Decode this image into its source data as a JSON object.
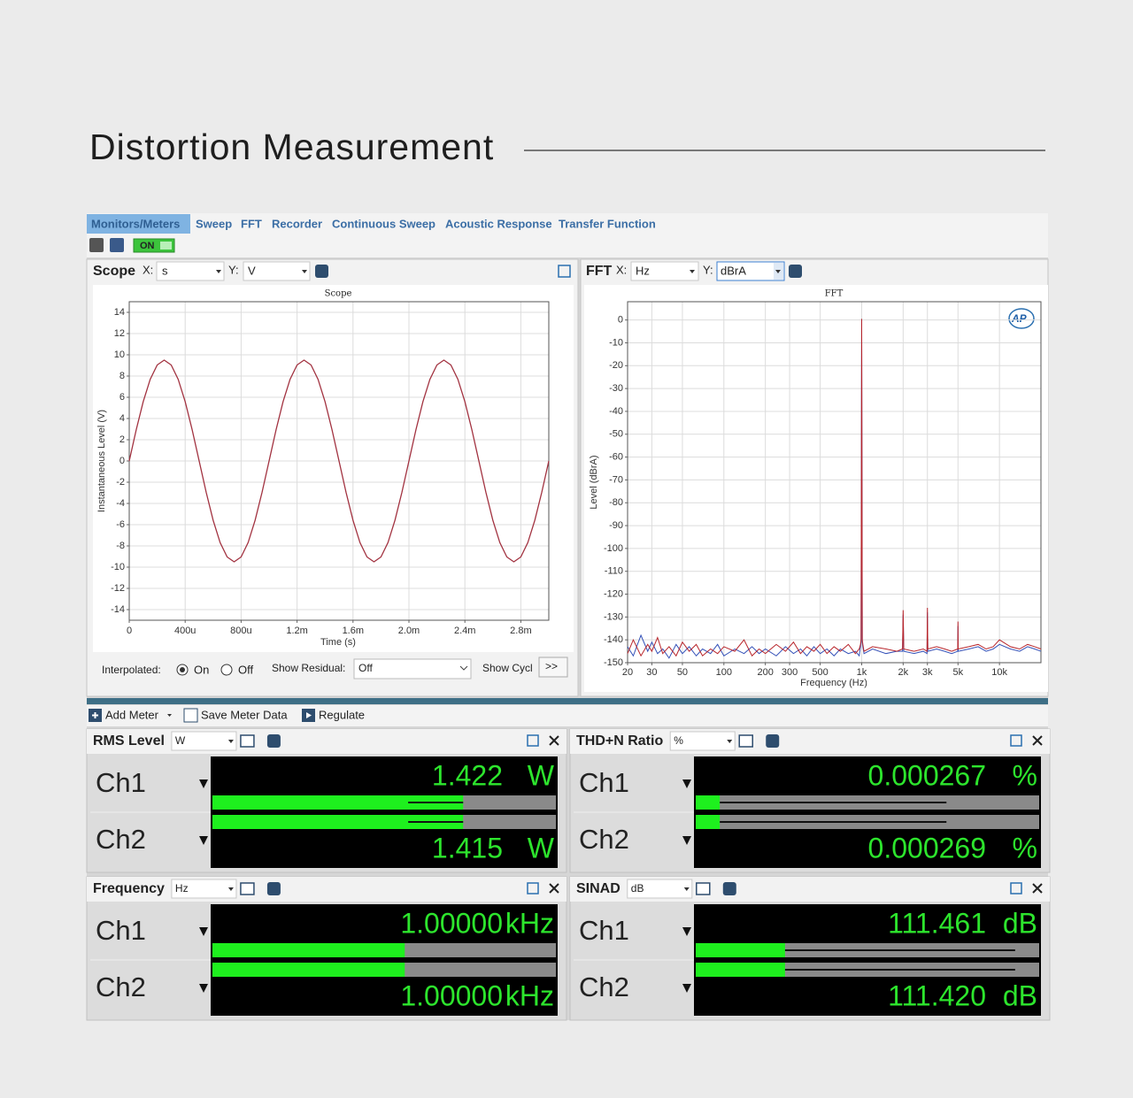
{
  "header": {
    "title": "Distortion Measurement"
  },
  "tabs": [
    "Monitors/Meters",
    "Sweep",
    "FFT",
    "Recorder",
    "Continuous Sweep",
    "Acoustic Response",
    "Transfer Function"
  ],
  "toolbar": {
    "toggle": "ON"
  },
  "scope_panel": {
    "title": "Scope",
    "x_label": "X:",
    "x_unit": "s",
    "y_label": "Y:",
    "y_unit": "V",
    "interpolated_label": "Interpolated:",
    "on": "On",
    "off": "Off",
    "residual_label": "Show Residual:",
    "residual_value": "Off",
    "show_cycles": "Show Cycl",
    "more": ">>"
  },
  "fft_panel": {
    "title": "FFT",
    "x_label": "X:",
    "x_unit": "Hz",
    "y_label": "Y:",
    "y_unit": "dBrA",
    "logo": "AP"
  },
  "chart_data": [
    {
      "type": "line",
      "title": "Scope",
      "x_label": "Time (s)",
      "y_label": "Instantaneous Level (V)",
      "xlim": [
        0,
        0.003
      ],
      "ylim": [
        -15,
        15
      ],
      "xticks": [
        0,
        {
          "value": 0.0004,
          "label": "400u"
        },
        {
          "value": 0.0008,
          "label": "800u"
        },
        {
          "value": 0.0012,
          "label": "1.2m"
        },
        {
          "value": 0.0016,
          "label": "1.6m"
        },
        {
          "value": 0.002,
          "label": "2.0m"
        },
        {
          "value": 0.0024,
          "label": "2.4m"
        },
        {
          "value": 0.0028,
          "label": "2.8m"
        }
      ],
      "yticks": [
        -14,
        -12,
        -10,
        -8,
        -6,
        -4,
        -2,
        0,
        2,
        4,
        6,
        8,
        10,
        12,
        14
      ],
      "grid": true,
      "x": [
        0,
        5e-05,
        0.0001,
        0.00015,
        0.0002,
        0.00025,
        0.0003,
        0.00035,
        0.0004,
        0.00045,
        0.0005,
        0.00055,
        0.0006,
        0.00065,
        0.0007,
        0.00075,
        0.0008,
        0.00085,
        0.0009,
        0.00095,
        0.001,
        0.00105,
        0.0011,
        0.00115,
        0.0012,
        0.00125,
        0.0013,
        0.00135,
        0.0014,
        0.00145,
        0.0015,
        0.00155,
        0.0016,
        0.00165,
        0.0017,
        0.00175,
        0.0018,
        0.00185,
        0.0019,
        0.00195,
        0.002,
        0.00205,
        0.0021,
        0.00215,
        0.0022,
        0.00225,
        0.0023,
        0.00235,
        0.0024,
        0.00245,
        0.0025,
        0.00255,
        0.0026,
        0.00265,
        0.0027,
        0.00275,
        0.0028,
        0.00285,
        0.0029,
        0.00295,
        0.003
      ],
      "series": [
        {
          "color": "#a23240",
          "values": [
            0,
            2.94,
            5.59,
            7.69,
            9.04,
            9.5,
            9.04,
            7.69,
            5.59,
            2.94,
            0,
            -2.94,
            -5.59,
            -7.69,
            -9.04,
            -9.5,
            -9.04,
            -7.69,
            -5.59,
            -2.94,
            0,
            2.94,
            5.59,
            7.69,
            9.04,
            9.5,
            9.04,
            7.69,
            5.59,
            2.94,
            0,
            -2.94,
            -5.59,
            -7.69,
            -9.04,
            -9.5,
            -9.04,
            -7.69,
            -5.59,
            -2.94,
            0,
            2.94,
            5.59,
            7.69,
            9.04,
            9.5,
            9.04,
            7.69,
            5.59,
            2.94,
            0,
            -2.94,
            -5.59,
            -7.69,
            -9.04,
            -9.5,
            -9.04,
            -7.69,
            -5.59,
            -2.94,
            0
          ]
        }
      ]
    },
    {
      "type": "line",
      "title": "FFT",
      "x_label": "Frequency (Hz)",
      "y_label": "Level (dBrA)",
      "log_x": true,
      "xlim": [
        20,
        20000
      ],
      "ylim": [
        -150,
        8
      ],
      "xticks": [
        20,
        30,
        50,
        100,
        200,
        300,
        500,
        {
          "value": 1000,
          "label": "1k"
        },
        {
          "value": 2000,
          "label": "2k"
        },
        {
          "value": 3000,
          "label": "3k"
        },
        {
          "value": 5000,
          "label": "5k"
        },
        {
          "value": 10000,
          "label": "10k"
        }
      ],
      "yticks": [
        0,
        -10,
        -20,
        -30,
        -40,
        -50,
        -60,
        -70,
        -80,
        -90,
        -100,
        -110,
        -120,
        -130,
        -140,
        -150
      ],
      "grid": true,
      "x": [
        20,
        22,
        25,
        28,
        30,
        33,
        36,
        40,
        45,
        50,
        56,
        63,
        70,
        80,
        90,
        100,
        120,
        140,
        160,
        180,
        200,
        240,
        280,
        320,
        360,
        400,
        450,
        500,
        560,
        630,
        700,
        800,
        900,
        960,
        980,
        990,
        1000,
        1010,
        1020,
        1040,
        1200,
        1500,
        1800,
        1980,
        2000,
        2020,
        2400,
        2800,
        2980,
        3000,
        3020,
        3500,
        4000,
        4500,
        4980,
        5000,
        5020,
        6000,
        7000,
        8000,
        9000,
        10000,
        12000,
        14000,
        16000,
        18000,
        20000
      ],
      "series": [
        {
          "color": "#3451b8",
          "values": [
            -143,
            -147,
            -138,
            -145,
            -141,
            -146,
            -144,
            -148,
            -142,
            -146,
            -143,
            -147,
            -144,
            -146,
            -142,
            -147,
            -144,
            -146,
            -143,
            -146,
            -144,
            -147,
            -143,
            -146,
            -144,
            -147,
            -143,
            -146,
            -144,
            -147,
            -144,
            -146,
            -145,
            -147,
            -143,
            -141,
            0.3,
            -141,
            -143,
            -146,
            -144,
            -146,
            -145,
            -145,
            -129,
            -145,
            -146,
            -145,
            -146,
            -128,
            -145,
            -144,
            -145,
            -146,
            -145,
            -134,
            -145,
            -144,
            -143,
            -145,
            -144,
            -142,
            -144,
            -145,
            -143,
            -144,
            -145
          ]
        },
        {
          "color": "#b8262c",
          "values": [
            -146,
            -140,
            -147,
            -142,
            -145,
            -139,
            -146,
            -143,
            -147,
            -141,
            -145,
            -142,
            -147,
            -144,
            -146,
            -143,
            -145,
            -140,
            -147,
            -144,
            -146,
            -142,
            -145,
            -141,
            -146,
            -143,
            -145,
            -142,
            -146,
            -143,
            -145,
            -142,
            -146,
            -144,
            -142,
            -140,
            0.5,
            -140,
            -142,
            -145,
            -143,
            -144,
            -145,
            -144,
            -127,
            -144,
            -145,
            -144,
            -145,
            -126,
            -144,
            -143,
            -144,
            -145,
            -144,
            -132,
            -144,
            -143,
            -142,
            -144,
            -143,
            -140,
            -143,
            -144,
            -142,
            -143,
            -144
          ]
        }
      ]
    }
  ],
  "meter_toolbar": [
    "Add Meter",
    "Save Meter Data",
    "Regulate"
  ],
  "meters": [
    {
      "title": "RMS Level",
      "unit": "W",
      "channels": [
        {
          "label": "Ch1",
          "value": "1.422",
          "unit": "W"
        },
        {
          "label": "Ch2",
          "value": "1.415",
          "unit": "W"
        }
      ]
    },
    {
      "title": "THD+N Ratio",
      "unit": "%",
      "channels": [
        {
          "label": "Ch1",
          "value": "0.000267",
          "unit": "%"
        },
        {
          "label": "Ch2",
          "value": "0.000269",
          "unit": "%"
        }
      ]
    },
    {
      "title": "Frequency",
      "unit": "Hz",
      "channels": [
        {
          "label": "Ch1",
          "value": "1.00000",
          "unit": "kHz"
        },
        {
          "label": "Ch2",
          "value": "1.00000",
          "unit": "kHz"
        }
      ]
    },
    {
      "title": "SINAD",
      "unit": "dB",
      "channels": [
        {
          "label": "Ch1",
          "value": "111.461",
          "unit": "dB"
        },
        {
          "label": "Ch2",
          "value": "111.420",
          "unit": "dB"
        }
      ]
    }
  ]
}
